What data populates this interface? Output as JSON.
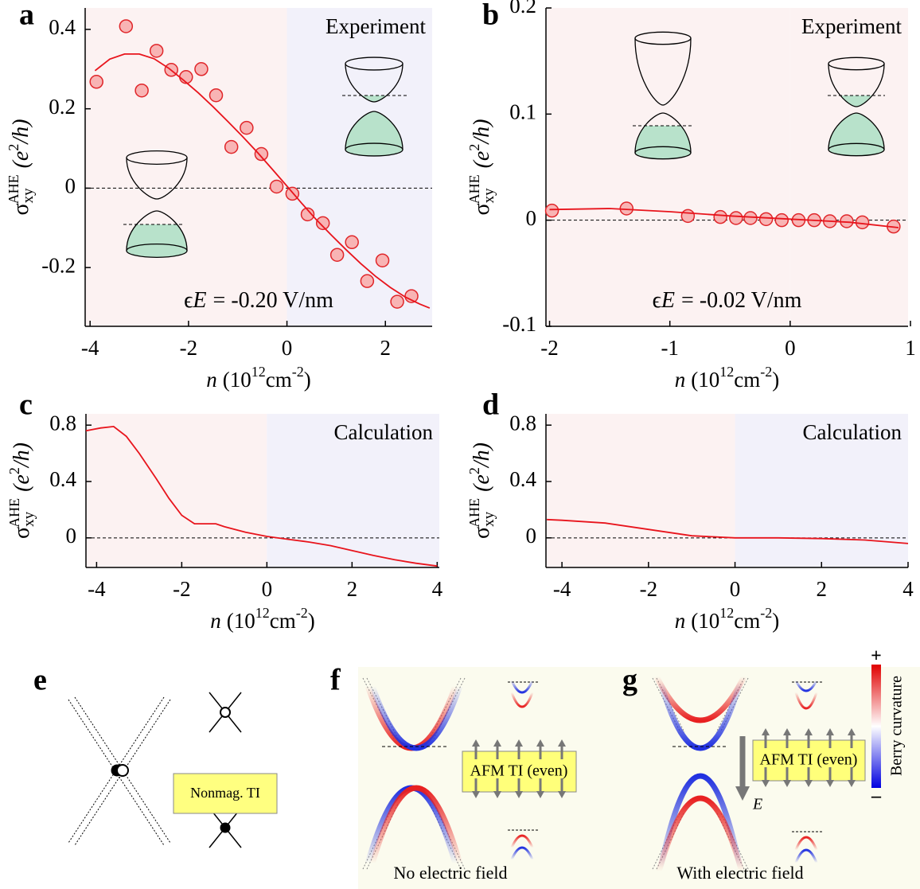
{
  "chart_data": [
    {
      "type": "scatter",
      "panel_label": "a",
      "annotation": "Experiment",
      "field_label": {
        "symbol": "ϵ",
        "var": "E",
        "text": "= -0.20 V/nm"
      },
      "x_label": {
        "var": "n",
        "unit": "(10",
        "exp": "12",
        "unit2": "cm",
        "exp2": "-2",
        "close": ")"
      },
      "y_label": {
        "symbol": "σ",
        "sub": "xy",
        "sup": "AHE",
        "unit": "(e",
        "exp": "2",
        "unit2": "/h)"
      },
      "xlim": [
        -4.1,
        2.95
      ],
      "ylim": [
        -0.348,
        0.454
      ],
      "xticks": [
        -4,
        -2,
        0,
        2
      ],
      "yticks": [
        -0.2,
        0,
        0.2,
        0.4
      ],
      "shading": {
        "negative": "#fcf2f2",
        "positive": "#f2f1fa"
      },
      "series": [
        {
          "kind": "points",
          "color": "#f8b4b4",
          "edge_color": "#e0262a",
          "x": [
            -3.87,
            -3.27,
            -2.95,
            -2.65,
            -2.35,
            -2.05,
            -1.74,
            -1.44,
            -1.13,
            -0.82,
            -0.52,
            -0.21,
            0.11,
            0.42,
            0.73,
            1.02,
            1.32,
            1.63,
            1.94,
            2.24,
            2.53
          ],
          "values": [
            0.268,
            0.408,
            0.246,
            0.346,
            0.298,
            0.28,
            0.3,
            0.234,
            0.104,
            0.152,
            0.086,
            0.004,
            -0.014,
            -0.066,
            -0.088,
            -0.168,
            -0.136,
            -0.234,
            -0.182,
            -0.286,
            -0.272
          ]
        },
        {
          "kind": "fit",
          "color": "#e8141c",
          "x": [
            -3.9,
            -3.6,
            -3.3,
            -3.0,
            -2.7,
            -2.4,
            -2.1,
            -1.8,
            -1.5,
            -1.2,
            -0.9,
            -0.6,
            -0.3,
            0,
            0.3,
            0.6,
            0.9,
            1.2,
            1.5,
            1.8,
            2.1,
            2.4,
            2.7,
            2.9
          ],
          "values": [
            0.296,
            0.325,
            0.338,
            0.338,
            0.326,
            0.302,
            0.272,
            0.24,
            0.205,
            0.168,
            0.13,
            0.09,
            0.048,
            0.005,
            -0.038,
            -0.08,
            -0.118,
            -0.155,
            -0.19,
            -0.222,
            -0.25,
            -0.274,
            -0.292,
            -0.302
          ]
        }
      ]
    },
    {
      "type": "scatter",
      "panel_label": "b",
      "annotation": "Experiment",
      "field_label": {
        "symbol": "ϵ",
        "var": "E",
        "text": "= -0.02 V/nm"
      },
      "x_label": {
        "var": "n",
        "unit": "(10",
        "exp": "12",
        "unit2": "cm",
        "exp2": "-2",
        "close": ")"
      },
      "y_label": {
        "symbol": "σ",
        "sub": "xy",
        "sup": "AHE",
        "unit": "(e",
        "exp": "2",
        "unit2": "/h)"
      },
      "xlim": [
        -2.03,
        0.98
      ],
      "ylim": [
        -0.1,
        0.2
      ],
      "xticks": [
        -2,
        -1,
        0,
        1
      ],
      "yticks": [
        -0.1,
        0,
        0.1,
        0.2
      ],
      "shading": {
        "negative": "#fcf2f2",
        "positive": "#fcf2f2"
      },
      "series": [
        {
          "kind": "points",
          "color": "#f8b4b4",
          "edge_color": "#e0262a",
          "x": [
            -1.98,
            -1.36,
            -0.85,
            -0.58,
            -0.45,
            -0.33,
            -0.2,
            -0.07,
            0.07,
            0.2,
            0.33,
            0.47,
            0.6,
            0.86
          ],
          "values": [
            0.009,
            0.011,
            0.004,
            0.003,
            0.002,
            0.002,
            0.001,
            0.0,
            0.0,
            0.0,
            -0.001,
            -0.001,
            -0.002,
            -0.006
          ]
        },
        {
          "kind": "fit",
          "color": "#e8141c",
          "x": [
            -2,
            -1.5,
            -1,
            -0.5,
            0,
            0.5,
            0.9
          ],
          "values": [
            0.01,
            0.011,
            0.008,
            0.004,
            0.001,
            -0.002,
            -0.007
          ]
        }
      ]
    },
    {
      "type": "line",
      "panel_label": "c",
      "annotation": "Calculation",
      "x_label": {
        "var": "n",
        "unit": "(10",
        "exp": "12",
        "unit2": "cm",
        "exp2": "-2",
        "close": ")"
      },
      "y_label": {
        "symbol": "σ",
        "sub": "xy",
        "sup": "AHE",
        "unit": "(e",
        "exp": "2",
        "unit2": "/h)"
      },
      "xlim": [
        -4.25,
        4.05
      ],
      "ylim": [
        -0.21,
        0.88
      ],
      "xticks": [
        -4,
        -2,
        0,
        2,
        4
      ],
      "yticks": [
        0,
        0.4,
        0.8
      ],
      "shading": {
        "negative": "#fcf2f2",
        "positive": "#f2f1fa"
      },
      "series": [
        {
          "kind": "fit",
          "color": "#e8141c",
          "x": [
            -4.25,
            -3.9,
            -3.6,
            -3.3,
            -3.0,
            -2.6,
            -2.3,
            -2.0,
            -1.7,
            -1.2,
            -1.0,
            -0.5,
            0,
            0.5,
            1.0,
            1.5,
            2.0,
            2.5,
            3.0,
            3.5,
            4.0
          ],
          "values": [
            0.76,
            0.78,
            0.79,
            0.72,
            0.6,
            0.42,
            0.28,
            0.16,
            0.1,
            0.1,
            0.08,
            0.04,
            0.01,
            -0.01,
            -0.03,
            -0.055,
            -0.09,
            -0.125,
            -0.155,
            -0.18,
            -0.2
          ]
        }
      ]
    },
    {
      "type": "line",
      "panel_label": "d",
      "annotation": "Calculation",
      "x_label": {
        "var": "n",
        "unit": "(10",
        "exp": "12",
        "unit2": "cm",
        "exp2": "-2",
        "close": ")"
      },
      "y_label": {
        "symbol": "σ",
        "sub": "xy",
        "sup": "AHE",
        "unit": "(e",
        "exp": "2",
        "unit2": "/h)"
      },
      "xlim": [
        -4.37,
        4
      ],
      "ylim": [
        -0.21,
        0.88
      ],
      "xticks": [
        -4,
        -2,
        0,
        2,
        4
      ],
      "yticks": [
        0,
        0.4,
        0.8
      ],
      "shading": {
        "negative": "#fcf2f2",
        "positive": "#f2f1fa"
      },
      "series": [
        {
          "kind": "fit",
          "color": "#e8141c",
          "x": [
            -4.35,
            -4,
            -3,
            -2,
            -1,
            0,
            1,
            2,
            3,
            4
          ],
          "values": [
            0.13,
            0.125,
            0.105,
            0.06,
            0.015,
            0.0,
            0.0,
            -0.005,
            -0.015,
            -0.04
          ]
        }
      ]
    }
  ],
  "panels": {
    "e": {
      "label": "e",
      "box": "Nonmag. TI"
    },
    "f": {
      "label": "f",
      "box": "AFM TI (even)",
      "caption": "No electric field"
    },
    "g": {
      "label": "g",
      "box": "AFM TI (even)",
      "caption": "With electric field",
      "field": "E",
      "colorbar": {
        "plus": "+",
        "minus": "–",
        "label": "Berry curvature"
      }
    }
  }
}
